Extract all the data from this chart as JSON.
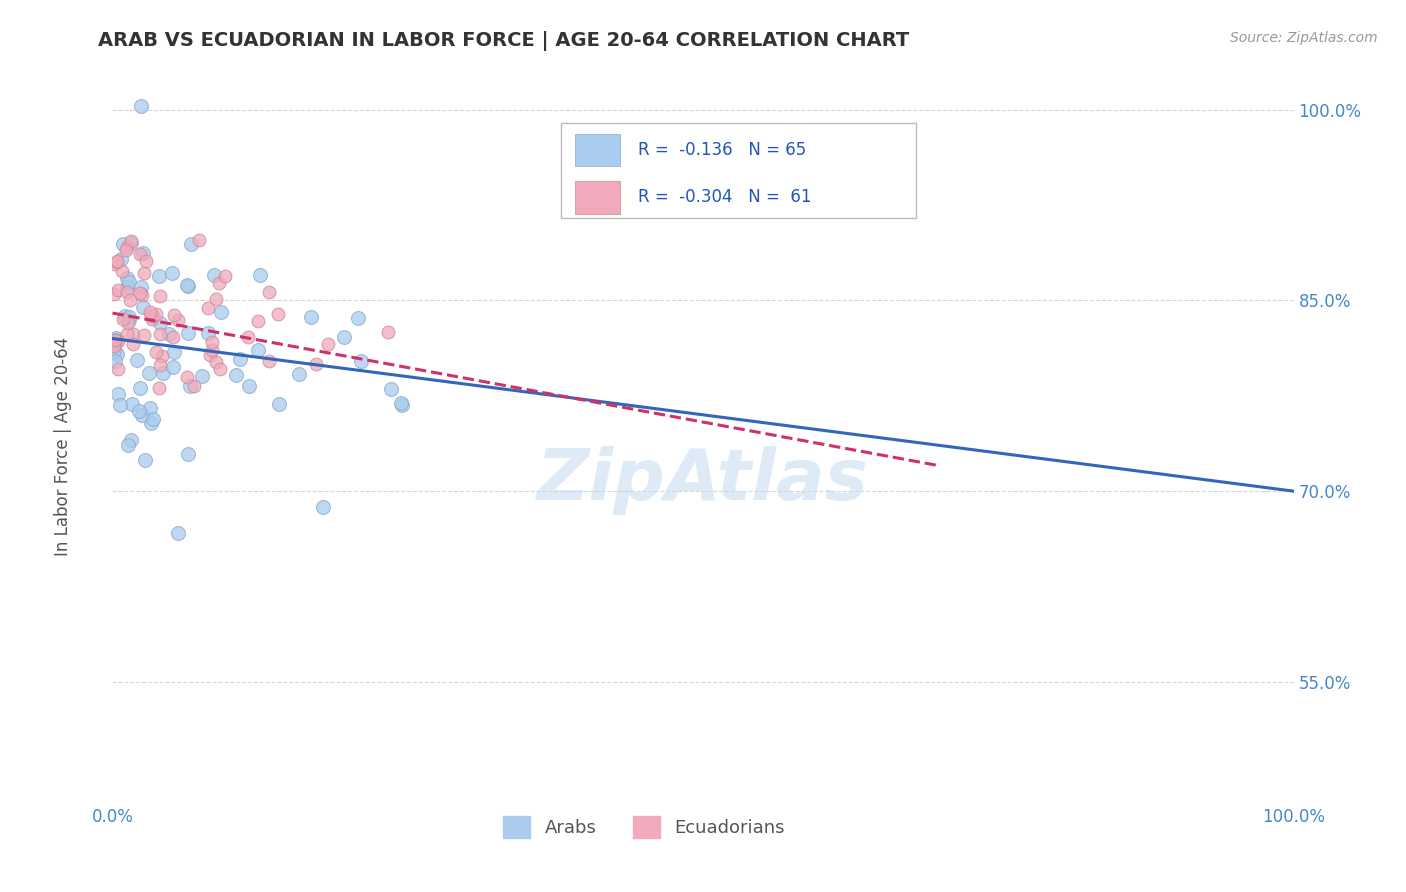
{
  "title": "ARAB VS ECUADORIAN IN LABOR FORCE | AGE 20-64 CORRELATION CHART",
  "source_text": "Source: ZipAtlas.com",
  "ylabel": "In Labor Force | Age 20-64",
  "xmin": 0.0,
  "xmax": 1.0,
  "ymin": 0.455,
  "ymax": 1.03,
  "y_tick_labels": [
    "55.0%",
    "70.0%",
    "85.0%",
    "100.0%"
  ],
  "y_tick_positions": [
    0.55,
    0.7,
    0.85,
    1.0
  ],
  "arab_color": "#aaccee",
  "arab_edge_color": "#88aacc",
  "ecuadorian_color": "#f0aabb",
  "ecuadorian_edge_color": "#cc8899",
  "trend_arab_color": "#3366bb",
  "trend_ecuadorian_color": "#cc3366",
  "arab_trend_start_y": 0.82,
  "arab_trend_end_y": 0.7,
  "arab_trend_x_start": 0.0,
  "arab_trend_x_end": 1.0,
  "ecu_trend_start_y": 0.84,
  "ecu_trend_end_y": 0.72,
  "ecu_trend_x_start": 0.0,
  "ecu_trend_x_end": 0.7,
  "watermark_color": "#c8ddf0",
  "background_color": "#ffffff",
  "grid_color": "#cccccc",
  "title_color": "#333333",
  "tick_label_color": "#4488cc",
  "axis_label_color": "#555555",
  "legend_text_color": "#2255bb",
  "marker_size": 100,
  "arab_seed": 42,
  "ecu_seed": 99
}
